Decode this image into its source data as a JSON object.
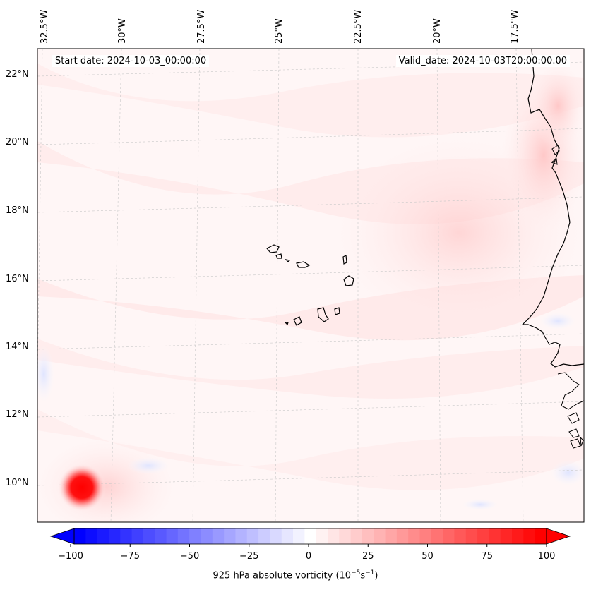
{
  "map": {
    "start_date": "Start date: 2024-10-03_00:00:00",
    "valid_date": "Valid_date: 2024-10-03T20:00:00.00",
    "lon_labels": [
      "32.5°W",
      "30°W",
      "27.5°W",
      "25°W",
      "22.5°W",
      "20°W",
      "17.5°W"
    ],
    "lat_labels": [
      "22°N",
      "20°N",
      "18°N",
      "16°N",
      "14°N",
      "12°N",
      "10°N"
    ],
    "variable": "925 hPa absolute vorticity",
    "colors": {
      "low": "#0000ff",
      "mid": "#ffffff",
      "high": "#ff0000",
      "coast": "#000000"
    }
  },
  "colorbar": {
    "label_prefix": "925 hPa absolute vorticity (10",
    "label_exp1": "−5",
    "label_mid": "s",
    "label_exp2": "−1",
    "label_suffix": ")",
    "ticks": [
      "−100",
      "−75",
      "−50",
      "−25",
      "0",
      "25",
      "50",
      "75",
      "100"
    ],
    "min": -100,
    "max": 100,
    "levels": 41
  },
  "features": {
    "storm_center": {
      "lat": 9.8,
      "lon": "31.2°W",
      "vorticity": 100
    }
  }
}
